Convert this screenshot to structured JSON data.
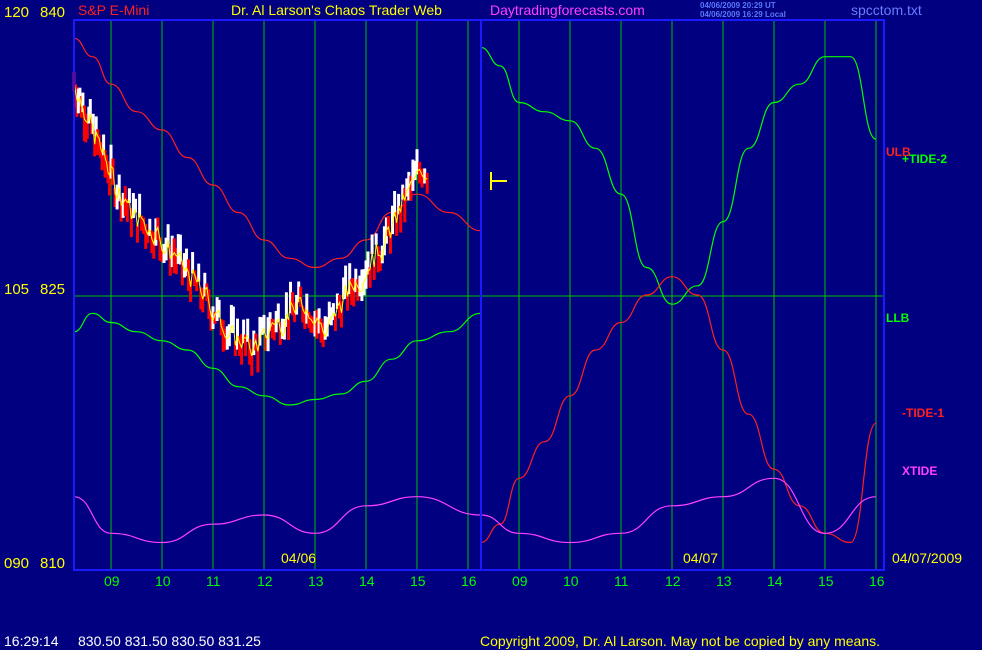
{
  "header": {
    "left_title": "S&P E-Mini",
    "center_title": "Dr. Al Larson's Chaos Trader Web",
    "site": "Daytradingforecasts.com",
    "stamp_ut": "04/06/2009 20:29 UT",
    "stamp_local": "04/06/2009 16:29 Local",
    "file": "spcctom.txt"
  },
  "footer": {
    "time": "16:29:14",
    "quote": "830.50 831.50 830.50 831.25",
    "copyright": "Copyright 2009, Dr. Al Larson. May not be copied by any means."
  },
  "colors": {
    "background": "#000080",
    "frame": "#1a1aff",
    "gridline": "#00c000",
    "ulb": "#ff2020",
    "llb": "#00ff00",
    "tide1": "#ff2020",
    "tide2": "#00ff00",
    "xtide": "#ff40ff",
    "price_up": "#ffffff",
    "price_down": "#ff0000",
    "average": "#ffff00"
  },
  "chart_data": {
    "type": "line",
    "title": "S&P E-Mini",
    "y_axis": {
      "left_labels": [
        "120",
        "105",
        "090"
      ],
      "right_labels": [
        "840",
        "825",
        "810"
      ],
      "ylim": [
        810,
        840
      ]
    },
    "x_axis": {
      "hour_labels": [
        "09",
        "10",
        "11",
        "12",
        "13",
        "14",
        "15",
        "16",
        "09",
        "10",
        "11",
        "12",
        "13",
        "14",
        "15",
        "16"
      ],
      "date_labels": [
        "04/06",
        "04/07",
        "04/07/2009"
      ]
    },
    "series_labels": [
      "ULB",
      "+TIDE-2",
      "LLB",
      "-TIDE-1",
      "XTIDE"
    ],
    "last_price": 831.25,
    "series": [
      {
        "name": "ULB",
        "x": [
          0,
          0.5,
          1,
          1.5,
          2,
          2.5,
          3,
          3.5,
          4,
          4.5,
          5,
          5.5,
          6,
          6.5,
          7,
          7.5,
          8
        ],
        "values": [
          839.0,
          838.0,
          836.5,
          835.0,
          834.0,
          832.5,
          831.0,
          829.5,
          828.0,
          827.0,
          826.5,
          827.0,
          828.0,
          829.5,
          830.5,
          829.5,
          828.5
        ]
      },
      {
        "name": "LLB",
        "x": [
          0,
          0.5,
          1,
          1.5,
          2,
          2.5,
          3,
          3.5,
          4,
          4.5,
          5,
          5.5,
          6,
          6.5,
          7,
          7.5,
          8
        ],
        "values": [
          823.0,
          824.0,
          823.5,
          823.0,
          822.5,
          822.0,
          821.0,
          820.0,
          819.5,
          819.0,
          819.3,
          819.6,
          820.3,
          821.5,
          822.5,
          823.0,
          824.0
        ]
      },
      {
        "name": "+TIDE-2",
        "x": [
          8,
          8.5,
          9,
          9.5,
          10,
          10.5,
          11,
          11.5,
          12,
          12.5,
          13,
          13.5,
          14,
          14.5,
          15,
          15.5,
          16
        ],
        "values": [
          838.5,
          837.5,
          835.5,
          835.0,
          834.5,
          833.0,
          830.5,
          826.5,
          824.5,
          825.5,
          829.0,
          833.0,
          835.5,
          836.5,
          838.0,
          838.0,
          833.5
        ]
      },
      {
        "name": "-TIDE-1",
        "x": [
          8,
          8.5,
          9,
          9.5,
          10,
          10.5,
          11,
          11.5,
          12,
          12.5,
          13,
          13.5,
          14,
          14.5,
          15,
          15.5,
          16
        ],
        "values": [
          811.5,
          812.5,
          815.0,
          817.0,
          819.5,
          822.0,
          823.5,
          825.0,
          826.0,
          825.0,
          822.0,
          818.5,
          815.5,
          813.5,
          812.0,
          811.5,
          818.0
        ]
      },
      {
        "name": "XTIDE",
        "x": [
          0,
          1,
          2,
          3,
          4,
          5,
          6,
          7,
          8,
          9,
          10,
          11,
          12,
          13,
          14,
          15,
          16
        ],
        "values": [
          814.0,
          812.0,
          811.5,
          812.5,
          813.0,
          812.0,
          813.5,
          814.0,
          813.0,
          812.0,
          811.5,
          812.0,
          813.5,
          814.0,
          815.0,
          812.0,
          814.0
        ]
      }
    ]
  }
}
